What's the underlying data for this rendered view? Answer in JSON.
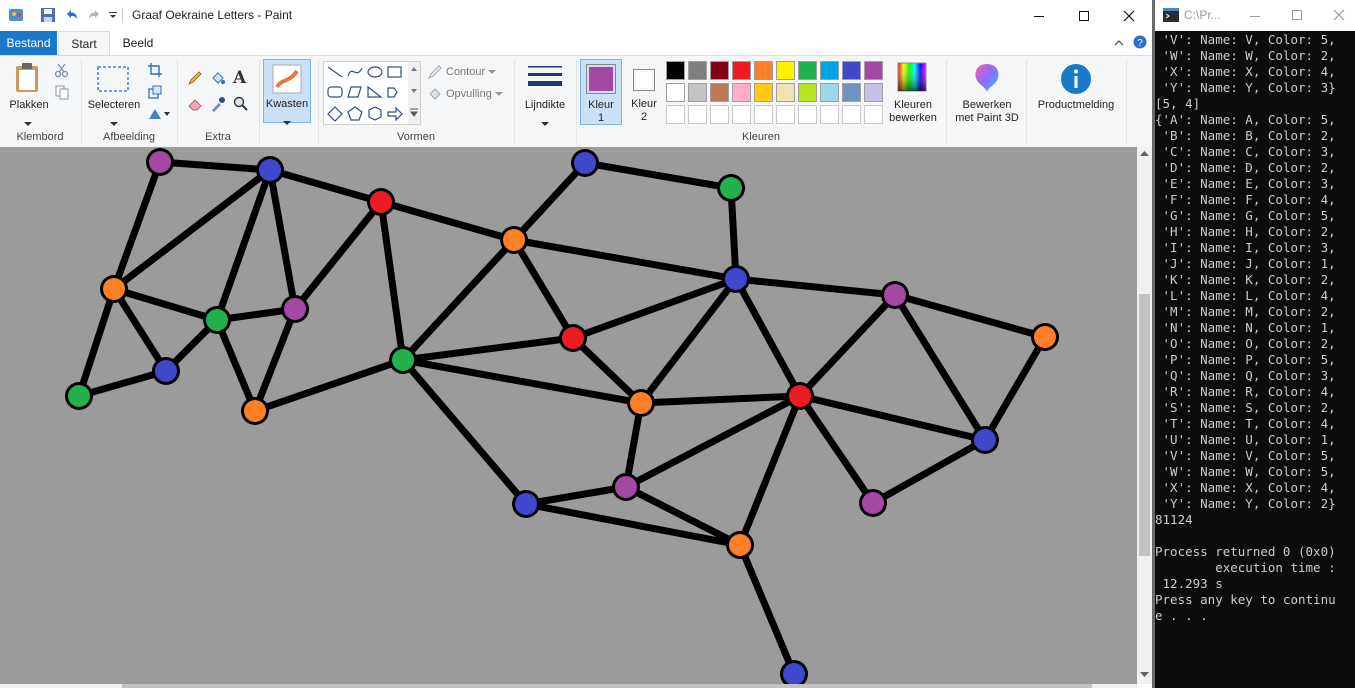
{
  "window": {
    "title": "Graaf Oekraine Letters - Paint",
    "minimize_icon": "minimize-icon",
    "maximize_icon": "maximize-icon",
    "close_icon": "close-icon"
  },
  "tabs": [
    {
      "label": "Bestand"
    },
    {
      "label": "Start"
    },
    {
      "label": "Beeld"
    }
  ],
  "ribbon": {
    "klembord": {
      "label": "Klembord",
      "paste": "Plakken"
    },
    "afbeelding": {
      "label": "Afbeelding",
      "select": "Selecteren"
    },
    "extra": {
      "label": "Extra"
    },
    "kwasten": {
      "label": "Kwasten"
    },
    "vormen": {
      "label": "Vormen",
      "contour": "Contour",
      "opvulling": "Opvulling"
    },
    "lijndikte": {
      "label": "Lijndikte"
    },
    "kleuren": {
      "label": "Kleuren",
      "kleur1_line1": "Kleur",
      "kleur1_line2": "1",
      "kleur2_line1": "Kleur",
      "kleur2_line2": "2",
      "edit_line1": "Kleuren",
      "edit_line2": "bewerken",
      "kleur1_color": "#a349a4",
      "kleur2_color": "#ffffff",
      "palette_row1": [
        "#000000",
        "#7f7f7f",
        "#880015",
        "#ed1c24",
        "#ff7f27",
        "#fff200",
        "#22b14c",
        "#00a2e8",
        "#3f48cc",
        "#a349a4"
      ],
      "palette_row2": [
        "#ffffff",
        "#c3c3c3",
        "#b97a57",
        "#ffaec9",
        "#ffc90e",
        "#efe4b0",
        "#b5e61d",
        "#99d9ea",
        "#7092be",
        "#c8bfe7"
      ]
    },
    "paint3d_line1": "Bewerken",
    "paint3d_line2": "met Paint 3D",
    "productmelding": "Productmelding"
  },
  "graph": {
    "node_colors": {
      "orange": "#ff7f27",
      "blue": "#3f48cc",
      "green": "#22b14c",
      "red": "#ed1c24",
      "purple": "#a349a4"
    }
  },
  "console": {
    "title": "C:\\Pr...",
    "lines": [
      " 'V': Name: V, Color: 5,",
      " 'W': Name: W, Color: 2,",
      " 'X': Name: X, Color: 4,",
      " 'Y': Name: Y, Color: 3}",
      "[5, 4]",
      "{'A': Name: A, Color: 5,",
      " 'B': Name: B, Color: 2,",
      " 'C': Name: C, Color: 3,",
      " 'D': Name: D, Color: 2,",
      " 'E': Name: E, Color: 3,",
      " 'F': Name: F, Color: 4,",
      " 'G': Name: G, Color: 5,",
      " 'H': Name: H, Color: 2,",
      " 'I': Name: I, Color: 3,",
      " 'J': Name: J, Color: 1,",
      " 'K': Name: K, Color: 2,",
      " 'L': Name: L, Color: 4,",
      " 'M': Name: M, Color: 2,",
      " 'N': Name: N, Color: 1,",
      " 'O': Name: O, Color: 2,",
      " 'P': Name: P, Color: 5,",
      " 'Q': Name: Q, Color: 3,",
      " 'R': Name: R, Color: 4,",
      " 'S': Name: S, Color: 2,",
      " 'T': Name: T, Color: 4,",
      " 'U': Name: U, Color: 1,",
      " 'V': Name: V, Color: 5,",
      " 'W': Name: W, Color: 5,",
      " 'X': Name: X, Color: 4,",
      " 'Y': Name: Y, Color: 2}",
      "81124",
      "",
      "Process returned 0 (0x0)",
      "        execution time :",
      " 12.293 s",
      "Press any key to continu",
      "e . . ."
    ]
  }
}
